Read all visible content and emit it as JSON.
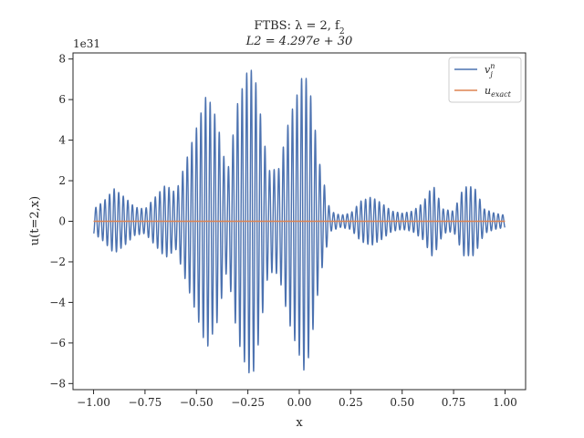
{
  "chart_data": {
    "type": "line",
    "title_line1": "FTBS: λ = 2, f",
    "title_line1_sub": "2",
    "title_line2": "L2 = 4.297e + 30",
    "xlabel": "x",
    "ylabel": "u(t=2,x)",
    "y_offset_text": "1e31",
    "xlim": [
      -1.1,
      1.1
    ],
    "ylim": [
      -8.3,
      8.3
    ],
    "x_ticks": [
      -1.0,
      -0.75,
      -0.5,
      -0.25,
      0.0,
      0.25,
      0.5,
      0.75,
      1.0
    ],
    "x_tick_labels": [
      "−1.00",
      "−0.75",
      "−0.50",
      "−0.25",
      "0.00",
      "0.25",
      "0.50",
      "0.75",
      "1.00"
    ],
    "y_ticks": [
      -8,
      -6,
      -4,
      -2,
      0,
      2,
      4,
      6,
      8
    ],
    "y_tick_labels": [
      "−8",
      "−6",
      "−4",
      "−2",
      "0",
      "2",
      "4",
      "6",
      "8"
    ],
    "grid": false,
    "legend_position": "top-right",
    "colors": {
      "v": "#4c72b0",
      "exact": "#dd8452"
    },
    "series": [
      {
        "name": "v",
        "name_sup": "n",
        "name_sub": "j",
        "envelope_x": [
          -1.0,
          -0.95,
          -0.9,
          -0.85,
          -0.8,
          -0.75,
          -0.7,
          -0.65,
          -0.6,
          -0.55,
          -0.5,
          -0.45,
          -0.4,
          -0.35,
          -0.3,
          -0.25,
          -0.22,
          -0.2,
          -0.15,
          -0.1,
          -0.05,
          0.0,
          0.02,
          0.05,
          0.1,
          0.15,
          0.2,
          0.25,
          0.3,
          0.35,
          0.4,
          0.45,
          0.5,
          0.55,
          0.6,
          0.65,
          0.7,
          0.75,
          0.8,
          0.85,
          0.9,
          0.95,
          1.0
        ],
        "envelope_amp": [
          0.6,
          1.0,
          1.6,
          1.2,
          0.7,
          0.6,
          1.2,
          1.8,
          1.4,
          3.0,
          4.6,
          6.3,
          5.0,
          2.3,
          5.8,
          7.5,
          7.4,
          6.1,
          2.5,
          2.6,
          5.0,
          6.6,
          7.4,
          6.6,
          2.8,
          0.5,
          0.3,
          0.4,
          1.0,
          1.2,
          0.9,
          0.5,
          0.4,
          0.5,
          0.9,
          1.8,
          0.6,
          0.5,
          1.7,
          1.7,
          0.6,
          0.4,
          0.3
        ],
        "oscillations_per_unit_x": 45
      },
      {
        "name": "u",
        "name_sub": "exact",
        "envelope_x": [
          -1.0,
          1.0
        ],
        "envelope_amp": [
          0.0,
          0.0
        ]
      }
    ]
  }
}
